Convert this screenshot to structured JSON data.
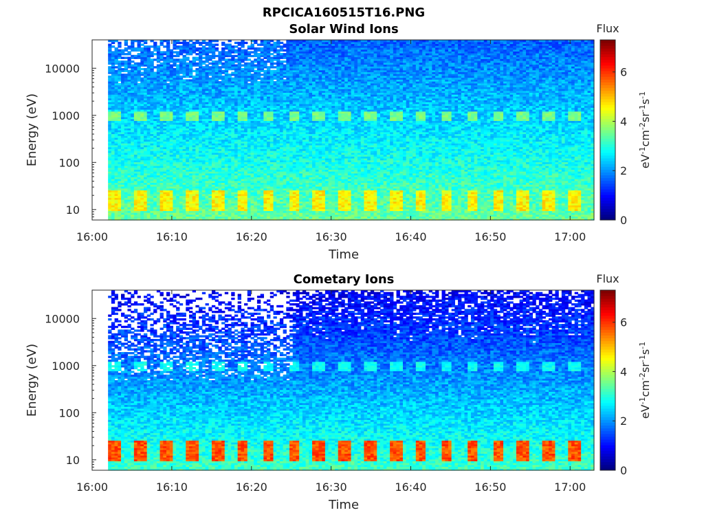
{
  "figure": {
    "title": "RPCICA160515T16.PNG"
  },
  "chart_data": [
    {
      "type": "heatmap",
      "title": "Solar Wind Ions",
      "xlabel": "Time",
      "ylabel": "Energy (eV)",
      "x_ticks": [
        "16:00",
        "16:10",
        "16:20",
        "16:30",
        "16:40",
        "16:50",
        "17:00"
      ],
      "y_scale": "log",
      "y_ticks": [
        "10",
        "100",
        "1000",
        "10000"
      ],
      "ylim": [
        6,
        40000
      ],
      "xlim": [
        "16:00",
        "17:03"
      ],
      "data_start": "16:02",
      "colorbar": {
        "title": "Flux",
        "label": "eV-1cm-2sr-1s-1",
        "ticks": [
          "0",
          "2",
          "4",
          "6"
        ],
        "range": [
          0,
          7.3
        ],
        "colormap": "jet"
      },
      "features": {
        "low_energy_band_eV": 15,
        "low_energy_band_level": 4.6,
        "mid_energy_band_eV": 900,
        "mid_energy_band_level": 3.6,
        "background_level_low_energy": 3.5,
        "background_level_high_energy": 1.6,
        "sparse_high_energy_until": "16:24"
      }
    },
    {
      "type": "heatmap",
      "title": "Cometary Ions",
      "xlabel": "Time",
      "ylabel": "Energy (eV)",
      "x_ticks": [
        "16:00",
        "16:10",
        "16:20",
        "16:30",
        "16:40",
        "16:50",
        "17:00"
      ],
      "y_scale": "log",
      "y_ticks": [
        "10",
        "100",
        "1000",
        "10000"
      ],
      "ylim": [
        6,
        40000
      ],
      "xlim": [
        "16:00",
        "17:03"
      ],
      "data_start": "16:02",
      "colorbar": {
        "title": "Flux",
        "label": "eV-1cm-2sr-1s-1",
        "ticks": [
          "0",
          "2",
          "4",
          "6"
        ],
        "range": [
          0,
          7.3
        ],
        "colormap": "jet"
      },
      "features": {
        "low_energy_band_eV": 15,
        "low_energy_band_level": 5.8,
        "mid_energy_band_eV": 900,
        "mid_energy_band_level": 2.8,
        "background_level_low_energy": 3.2,
        "background_level_high_energy": 0.8,
        "sparse_high_energy_until": "16:25"
      }
    }
  ]
}
